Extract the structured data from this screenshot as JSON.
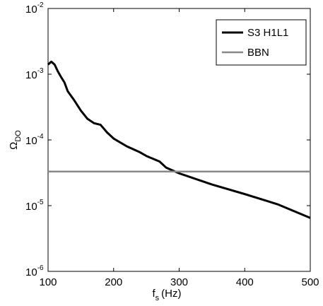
{
  "chart_data": {
    "type": "line",
    "y_label": {
      "text": "Ω",
      "sub": "DO"
    },
    "x_label": {
      "text": "f",
      "sub": "s",
      "rest": "(Hz)"
    },
    "xlim": [
      100,
      500
    ],
    "xticks": [
      100,
      200,
      300,
      400,
      500
    ],
    "ylim": [
      1e-06,
      0.01
    ],
    "yscale": "log",
    "yticks": [
      {
        "value": 1e-06,
        "label": "10",
        "exp": "-6"
      },
      {
        "value": 1e-05,
        "label": "10",
        "exp": "-5"
      },
      {
        "value": 0.0001,
        "label": "10",
        "exp": "-4"
      },
      {
        "value": 0.001,
        "label": "10",
        "exp": "-3"
      },
      {
        "value": 0.01,
        "label": "10",
        "exp": "-2"
      }
    ],
    "grid": false,
    "legend": "top-right",
    "series": [
      {
        "name": "S3 H1L1",
        "color": "#000000",
        "width": 3,
        "x": [
          100,
          105,
          110,
          115,
          120,
          125,
          130,
          140,
          150,
          160,
          170,
          180,
          190,
          200,
          220,
          240,
          250,
          270,
          280,
          300,
          350,
          400,
          450,
          500
        ],
        "values": [
          0.0014,
          0.00155,
          0.0014,
          0.0011,
          0.0009,
          0.00075,
          0.00055,
          0.0004,
          0.00028,
          0.00021,
          0.00018,
          0.00017,
          0.00013,
          0.000105,
          8e-05,
          6.5e-05,
          5.7e-05,
          4.7e-05,
          3.8e-05,
          3.1e-05,
          2.1e-05,
          1.5e-05,
          1.05e-05,
          6.5e-06
        ]
      },
      {
        "name": "BBN",
        "color": "#888888",
        "width": 2.5,
        "x": [
          100,
          500
        ],
        "values": [
          3.3e-05,
          3.3e-05
        ]
      }
    ]
  }
}
